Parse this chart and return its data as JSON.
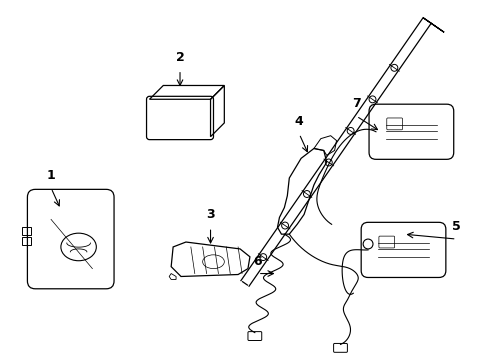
{
  "bg_color": "#ffffff",
  "line_color": "#000000",
  "figsize": [
    4.9,
    3.6
  ],
  "dpi": 100,
  "lw": 0.9
}
